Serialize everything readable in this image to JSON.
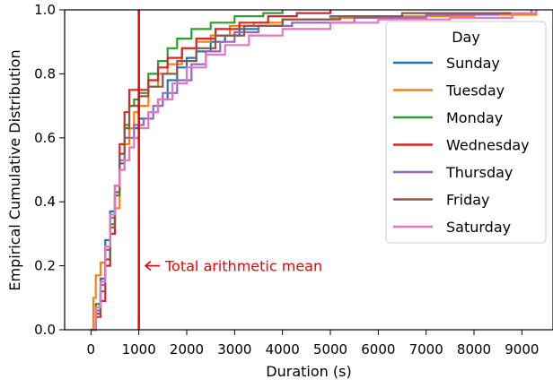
{
  "chart_data": {
    "type": "line",
    "step": true,
    "xlabel": "Duration (s)",
    "ylabel": "Empirical Cumulative Distribution",
    "xlim": [
      -550,
      9650
    ],
    "ylim": [
      0,
      1
    ],
    "x_ticks": [
      0,
      1000,
      2000,
      3000,
      4000,
      5000,
      6000,
      7000,
      8000,
      9000
    ],
    "y_ticks": [
      0.0,
      0.2,
      0.4,
      0.6,
      0.8,
      1.0
    ],
    "x_tick_labels": [
      "0",
      "1000",
      "2000",
      "3000",
      "4000",
      "5000",
      "6000",
      "7000",
      "8000",
      "9000"
    ],
    "y_tick_labels": [
      "0.0",
      "0.2",
      "0.4",
      "0.6",
      "0.8",
      "1.0"
    ],
    "grid": false,
    "legend": {
      "title": "Day",
      "position": "top-right"
    },
    "series": [
      {
        "name": "Sunday",
        "color": "#1f77b4",
        "points": [
          [
            0,
            0.0
          ],
          [
            100,
            0.08
          ],
          [
            200,
            0.16
          ],
          [
            300,
            0.28
          ],
          [
            400,
            0.37
          ],
          [
            500,
            0.42
          ],
          [
            600,
            0.52
          ],
          [
            700,
            0.6
          ],
          [
            800,
            0.63
          ],
          [
            1000,
            0.66
          ],
          [
            1200,
            0.68
          ],
          [
            1400,
            0.72
          ],
          [
            1600,
            0.78
          ],
          [
            1800,
            0.82
          ],
          [
            2000,
            0.85
          ],
          [
            2200,
            0.87
          ],
          [
            2500,
            0.9
          ],
          [
            2800,
            0.92
          ],
          [
            3100,
            0.94
          ],
          [
            3500,
            0.95
          ],
          [
            4000,
            0.97
          ],
          [
            5000,
            0.98
          ],
          [
            7000,
            0.985
          ],
          [
            8800,
            0.99
          ],
          [
            9200,
            1.0
          ]
        ]
      },
      {
        "name": "Tuesday",
        "color": "#ff7f0e",
        "points": [
          [
            0,
            0.0
          ],
          [
            50,
            0.1
          ],
          [
            100,
            0.17
          ],
          [
            200,
            0.21
          ],
          [
            300,
            0.26
          ],
          [
            400,
            0.3
          ],
          [
            500,
            0.38
          ],
          [
            600,
            0.5
          ],
          [
            700,
            0.58
          ],
          [
            800,
            0.63
          ],
          [
            900,
            0.68
          ],
          [
            1000,
            0.7
          ],
          [
            1200,
            0.76
          ],
          [
            1400,
            0.8
          ],
          [
            1600,
            0.83
          ],
          [
            1900,
            0.88
          ],
          [
            2200,
            0.9
          ],
          [
            2500,
            0.92
          ],
          [
            2900,
            0.95
          ],
          [
            3400,
            0.96
          ],
          [
            4000,
            0.97
          ],
          [
            5000,
            0.975
          ],
          [
            6500,
            0.98
          ],
          [
            8000,
            0.985
          ],
          [
            9300,
            1.0
          ]
        ]
      },
      {
        "name": "Monday",
        "color": "#2ca02c",
        "points": [
          [
            0,
            0.0
          ],
          [
            100,
            0.08
          ],
          [
            200,
            0.15
          ],
          [
            300,
            0.25
          ],
          [
            400,
            0.33
          ],
          [
            500,
            0.42
          ],
          [
            600,
            0.55
          ],
          [
            700,
            0.64
          ],
          [
            800,
            0.7
          ],
          [
            900,
            0.72
          ],
          [
            1000,
            0.74
          ],
          [
            1200,
            0.8
          ],
          [
            1400,
            0.84
          ],
          [
            1600,
            0.88
          ],
          [
            1800,
            0.91
          ],
          [
            2100,
            0.94
          ],
          [
            2500,
            0.96
          ],
          [
            3000,
            0.98
          ],
          [
            3600,
            0.99
          ],
          [
            4000,
            1.0
          ]
        ]
      },
      {
        "name": "Wednesday",
        "color": "#d62728",
        "points": [
          [
            0,
            0.0
          ],
          [
            100,
            0.04
          ],
          [
            200,
            0.09
          ],
          [
            300,
            0.2
          ],
          [
            400,
            0.3
          ],
          [
            500,
            0.45
          ],
          [
            600,
            0.58
          ],
          [
            700,
            0.68
          ],
          [
            800,
            0.75
          ],
          [
            1000,
            0.75
          ],
          [
            1200,
            0.78
          ],
          [
            1400,
            0.82
          ],
          [
            1600,
            0.85
          ],
          [
            1900,
            0.88
          ],
          [
            2200,
            0.91
          ],
          [
            2600,
            0.94
          ],
          [
            3100,
            0.96
          ],
          [
            3700,
            0.98
          ],
          [
            4300,
            0.99
          ],
          [
            5000,
            1.0
          ]
        ]
      },
      {
        "name": "Thursday",
        "color": "#9467bd",
        "points": [
          [
            0,
            0.0
          ],
          [
            100,
            0.06
          ],
          [
            200,
            0.14
          ],
          [
            300,
            0.25
          ],
          [
            400,
            0.35
          ],
          [
            500,
            0.45
          ],
          [
            600,
            0.53
          ],
          [
            700,
            0.6
          ],
          [
            900,
            0.64
          ],
          [
            1100,
            0.66
          ],
          [
            1300,
            0.7
          ],
          [
            1500,
            0.74
          ],
          [
            1800,
            0.78
          ],
          [
            2100,
            0.83
          ],
          [
            2400,
            0.87
          ],
          [
            2700,
            0.9
          ],
          [
            3000,
            0.93
          ],
          [
            3500,
            0.95
          ],
          [
            4200,
            0.96
          ],
          [
            5500,
            0.975
          ],
          [
            7000,
            0.985
          ],
          [
            8500,
            0.99
          ],
          [
            9200,
            1.0
          ]
        ]
      },
      {
        "name": "Friday",
        "color": "#8c564b",
        "points": [
          [
            0,
            0.0
          ],
          [
            100,
            0.05
          ],
          [
            200,
            0.12
          ],
          [
            300,
            0.22
          ],
          [
            400,
            0.32
          ],
          [
            500,
            0.43
          ],
          [
            600,
            0.55
          ],
          [
            700,
            0.63
          ],
          [
            800,
            0.7
          ],
          [
            1000,
            0.73
          ],
          [
            1200,
            0.76
          ],
          [
            1500,
            0.8
          ],
          [
            1800,
            0.84
          ],
          [
            2200,
            0.88
          ],
          [
            2600,
            0.92
          ],
          [
            3200,
            0.95
          ],
          [
            4000,
            0.97
          ],
          [
            5200,
            0.98
          ],
          [
            6500,
            0.99
          ],
          [
            9300,
            1.0
          ]
        ]
      },
      {
        "name": "Saturday",
        "color": "#e377c2",
        "points": [
          [
            0,
            0.0
          ],
          [
            100,
            0.07
          ],
          [
            200,
            0.15
          ],
          [
            300,
            0.26
          ],
          [
            400,
            0.36
          ],
          [
            500,
            0.45
          ],
          [
            600,
            0.5
          ],
          [
            700,
            0.53
          ],
          [
            800,
            0.57
          ],
          [
            900,
            0.6
          ],
          [
            1000,
            0.63
          ],
          [
            1200,
            0.68
          ],
          [
            1400,
            0.72
          ],
          [
            1700,
            0.77
          ],
          [
            2000,
            0.82
          ],
          [
            2400,
            0.86
          ],
          [
            2800,
            0.89
          ],
          [
            3300,
            0.92
          ],
          [
            4000,
            0.94
          ],
          [
            5000,
            0.96
          ],
          [
            6000,
            0.97
          ],
          [
            7500,
            0.975
          ],
          [
            8800,
            0.99
          ],
          [
            9300,
            1.0
          ]
        ]
      }
    ],
    "vline": {
      "x": 1000,
      "color": "#ee0000"
    },
    "annotation": {
      "text": "Total arithmetic mean",
      "color": "#ee0000",
      "x": 1100,
      "y": 0.2
    }
  }
}
